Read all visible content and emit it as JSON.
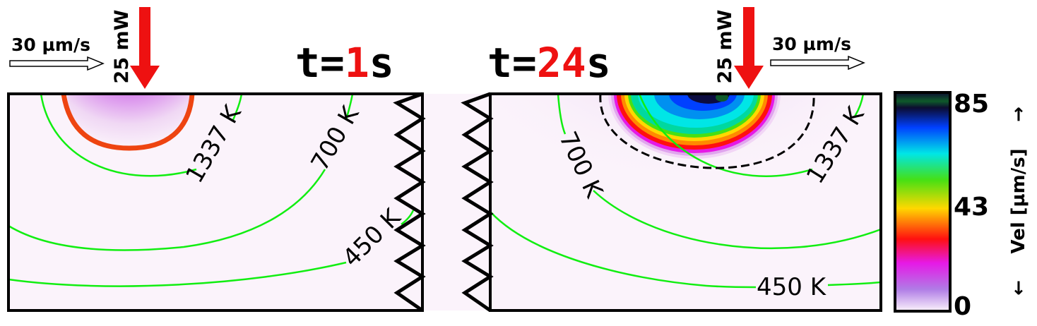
{
  "colors": {
    "laser": "#ee1111",
    "contour": "#11ee11",
    "melt_boundary": "#ee4411",
    "domain_bg": "#fbf3fb",
    "time_value": "#ee1111"
  },
  "left_panel": {
    "scan_speed": "30 µm/s",
    "laser_power": "25 mW",
    "time_prefix": "t=",
    "time_value": "1",
    "time_unit": "s",
    "contours": [
      "1337 K",
      "700 K",
      "450 K"
    ]
  },
  "right_panel": {
    "scan_speed": "30 µm/s",
    "laser_power": "25 mW",
    "time_prefix": "t=",
    "time_value": "24",
    "time_unit": "s",
    "contours": [
      "700 K",
      "1337 K",
      "450 K"
    ]
  },
  "colorbar": {
    "label": "Vel [µm/s]",
    "arrow_up": "→",
    "arrow_down": "←",
    "ticks": [
      "85",
      "43",
      "0"
    ],
    "range": [
      0,
      85
    ],
    "colors": [
      "#fbf3fb",
      "#b07ce6",
      "#e619e6",
      "#ff1010",
      "#ffd800",
      "#46e014",
      "#00e6e6",
      "#0040ff",
      "#0c0c30",
      "#0e5a2a"
    ]
  }
}
